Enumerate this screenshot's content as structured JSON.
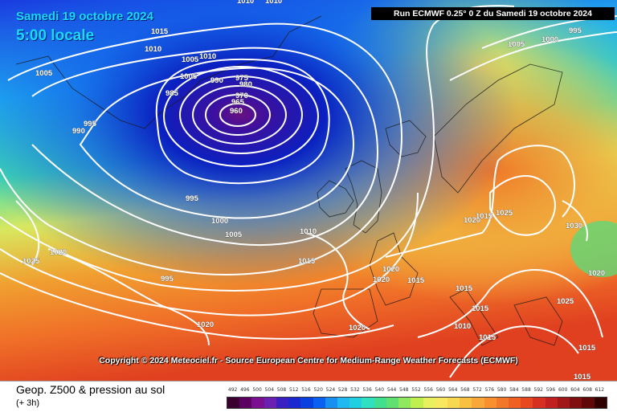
{
  "map": {
    "title_date": "Samedi 19 octobre 2024",
    "title_time": "5:00 locale",
    "run_label": "Run ECMWF 0.25° 0 Z du Samedi 19 octobre 2024",
    "copyright": "Copyright © 2024 Meteociel.fr - Source European Centre for Medium-Range Weather Forecasts (ECMWF)",
    "low_center": "960",
    "isobar_labels": [
      "1015",
      "1010",
      "1010",
      "1010",
      "1005",
      "1010",
      "1005",
      "995",
      "990",
      "985",
      "965",
      "970",
      "975",
      "960",
      "980",
      "990",
      "1005",
      "995",
      "1000",
      "1005",
      "1010",
      "1015",
      "1025",
      "1020",
      "995",
      "1020",
      "995",
      "1000",
      "1005",
      "1020",
      "1020",
      "1020",
      "1025",
      "1030",
      "1020",
      "1015",
      "1015",
      "1015",
      "1010",
      "1015",
      "1020",
      "1025",
      "1015",
      "1015",
      "1015"
    ],
    "colors": {
      "deep_blue": "#0a28c8",
      "cyan": "#20c8f0",
      "green": "#58d870",
      "yellow": "#f0e050",
      "orange": "#f08030",
      "red": "#d82828"
    }
  },
  "legend": {
    "title": "Geop. Z500 & pression au sol",
    "subtitle": "(+ 3h)",
    "scale": [
      "492",
      "496",
      "500",
      "504",
      "508",
      "512",
      "516",
      "520",
      "524",
      "528",
      "532",
      "536",
      "540",
      "544",
      "548",
      "552",
      "556",
      "560",
      "564",
      "568",
      "572",
      "576",
      "580",
      "584",
      "588",
      "592",
      "596",
      "600",
      "604",
      "608",
      "612"
    ],
    "scale_colors": [
      "#3a0030",
      "#5a0060",
      "#7a1090",
      "#6a20b0",
      "#3a20c0",
      "#1a28d0",
      "#0a40e0",
      "#0a60f0",
      "#1890f0",
      "#20b8f0",
      "#20d0e0",
      "#30e0c0",
      "#40e090",
      "#60e070",
      "#90e860",
      "#c0f050",
      "#e8f060",
      "#f8e860",
      "#f8d850",
      "#f8c040",
      "#f8a838",
      "#f89030",
      "#f07828",
      "#f06020",
      "#e84820",
      "#d83020",
      "#c02020",
      "#a01818",
      "#801010",
      "#600808",
      "#300000"
    ]
  }
}
